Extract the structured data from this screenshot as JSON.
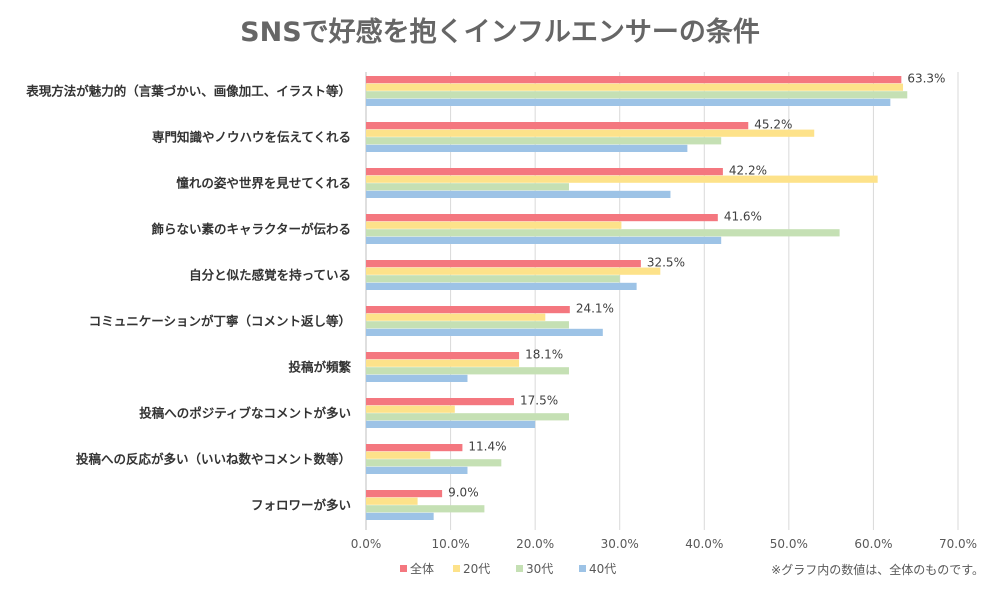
{
  "chart_data": {
    "type": "bar",
    "orientation": "horizontal",
    "title": "SNSで好感を抱くインフルエンサーの条件",
    "categories": [
      "表現方法が魅力的（言葉づかい、画像加工、イラスト等）",
      "専門知識やノウハウを伝えてくれる",
      "憧れの姿や世界を見せてくれる",
      "飾らない素のキャラクターが伝わる",
      "自分と似た感覚を持っている",
      "コミュニケーションが丁寧（コメント返し等）",
      "投稿が頻繁",
      "投稿へのポジティブなコメントが多い",
      "投稿への反応が多い（いいね数やコメント数等）",
      "フォロワーが多い"
    ],
    "series": [
      {
        "name": "全体",
        "color": "#f4777f",
        "values": [
          63.3,
          45.2,
          42.2,
          41.6,
          32.5,
          24.1,
          18.1,
          17.5,
          11.4,
          9.0
        ]
      },
      {
        "name": "20代",
        "color": "#fde28a",
        "values": [
          63.5,
          53.0,
          60.5,
          30.2,
          34.8,
          21.2,
          18.1,
          10.5,
          7.6,
          6.1
        ]
      },
      {
        "name": "30代",
        "color": "#c5e0b4",
        "values": [
          64.0,
          42.0,
          24.0,
          56.0,
          30.0,
          24.0,
          24.0,
          24.0,
          16.0,
          14.0
        ]
      },
      {
        "name": "40代",
        "color": "#9dc3e6",
        "values": [
          62.0,
          38.0,
          36.0,
          42.0,
          32.0,
          28.0,
          12.0,
          20.0,
          12.0,
          8.0
        ]
      }
    ],
    "data_labels": [
      "63.3%",
      "45.2%",
      "42.2%",
      "41.6%",
      "32.5%",
      "24.1%",
      "18.1%",
      "17.5%",
      "11.4%",
      "9.0%"
    ],
    "x_ticks": [
      "0.0%",
      "10.0%",
      "20.0%",
      "30.0%",
      "40.0%",
      "50.0%",
      "60.0%",
      "70.0%"
    ],
    "xlim": [
      0,
      70
    ],
    "grid": true,
    "legend_position": "bottom-left",
    "note": "※グラフ内の数値は、全体のものです。"
  }
}
